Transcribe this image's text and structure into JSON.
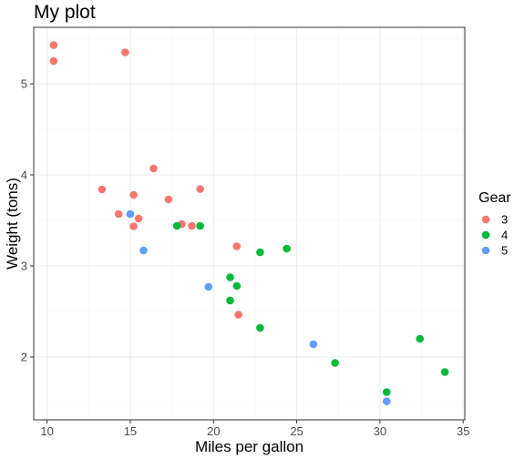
{
  "chart_data": {
    "type": "scatter",
    "title": "My plot",
    "xlabel": "Miles per gallon",
    "ylabel": "Weight (tons)",
    "xlim": [
      9.2,
      35.1
    ],
    "ylim": [
      1.31,
      5.62
    ],
    "x_ticks": [
      "10",
      "15",
      "20",
      "25",
      "30",
      "35"
    ],
    "y_ticks": [
      "2",
      "3",
      "4",
      "5"
    ],
    "grid": true,
    "legend": {
      "title": "Gear",
      "position": "right"
    },
    "series": [
      {
        "name": "3",
        "color": "#F8766D",
        "points": [
          [
            21.4,
            3.215
          ],
          [
            18.7,
            3.44
          ],
          [
            18.1,
            3.46
          ],
          [
            14.3,
            3.57
          ],
          [
            16.4,
            4.07
          ],
          [
            17.3,
            3.73
          ],
          [
            15.2,
            3.78
          ],
          [
            10.4,
            5.25
          ],
          [
            10.4,
            5.424
          ],
          [
            14.7,
            5.345
          ],
          [
            21.5,
            2.465
          ],
          [
            15.5,
            3.52
          ],
          [
            15.2,
            3.435
          ],
          [
            13.3,
            3.84
          ],
          [
            19.2,
            3.845
          ]
        ]
      },
      {
        "name": "4",
        "color": "#00BA38",
        "points": [
          [
            21.0,
            2.62
          ],
          [
            21.0,
            2.875
          ],
          [
            22.8,
            2.32
          ],
          [
            24.4,
            3.19
          ],
          [
            22.8,
            3.15
          ],
          [
            19.2,
            3.44
          ],
          [
            17.8,
            3.44
          ],
          [
            32.4,
            2.2
          ],
          [
            30.4,
            1.615
          ],
          [
            33.9,
            1.835
          ],
          [
            27.3,
            1.935
          ],
          [
            21.4,
            2.78
          ]
        ]
      },
      {
        "name": "5",
        "color": "#619CFF",
        "points": [
          [
            26.0,
            2.14
          ],
          [
            30.4,
            1.513
          ],
          [
            15.8,
            3.17
          ],
          [
            19.7,
            2.77
          ],
          [
            15.0,
            3.57
          ]
        ]
      }
    ]
  }
}
